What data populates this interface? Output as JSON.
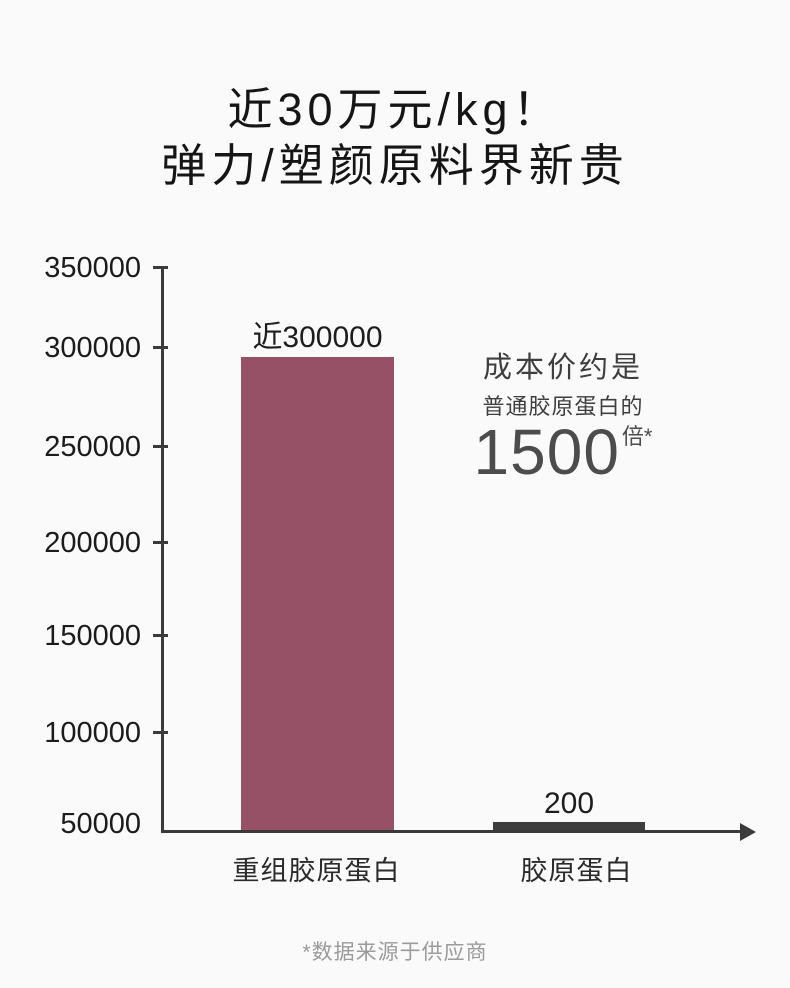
{
  "title": {
    "line1": "近30万元/kg！",
    "line2": "弹力/塑颜原料界新贵"
  },
  "chart_data": {
    "type": "bar",
    "title": "近30万元/kg！弹力/塑颜原料界新贵",
    "categories": [
      "重组胶原蛋白",
      "胶原蛋白"
    ],
    "values": [
      300000,
      200
    ],
    "bar_value_labels": [
      "近300000",
      "200"
    ],
    "bar_colors": [
      "#975166",
      "#3d3d3d"
    ],
    "axis_color": "#3a3a3a",
    "yticks": [
      350000,
      300000,
      250000,
      200000,
      150000,
      100000,
      50000
    ],
    "ytick_labels": [
      "350000",
      "300000",
      "250000",
      "200000",
      "150000",
      "100000",
      "50000"
    ],
    "ylim": [
      50000,
      350000
    ],
    "xlabel": "",
    "ylabel": "",
    "grid": false,
    "legend": false,
    "x_axis_arrow": true,
    "annotation": {
      "line1": "成本价约是",
      "line2": "普通胶原蛋白的",
      "big_number": "1500",
      "suffix": "倍*"
    }
  },
  "footnote": "*数据来源于供应商"
}
